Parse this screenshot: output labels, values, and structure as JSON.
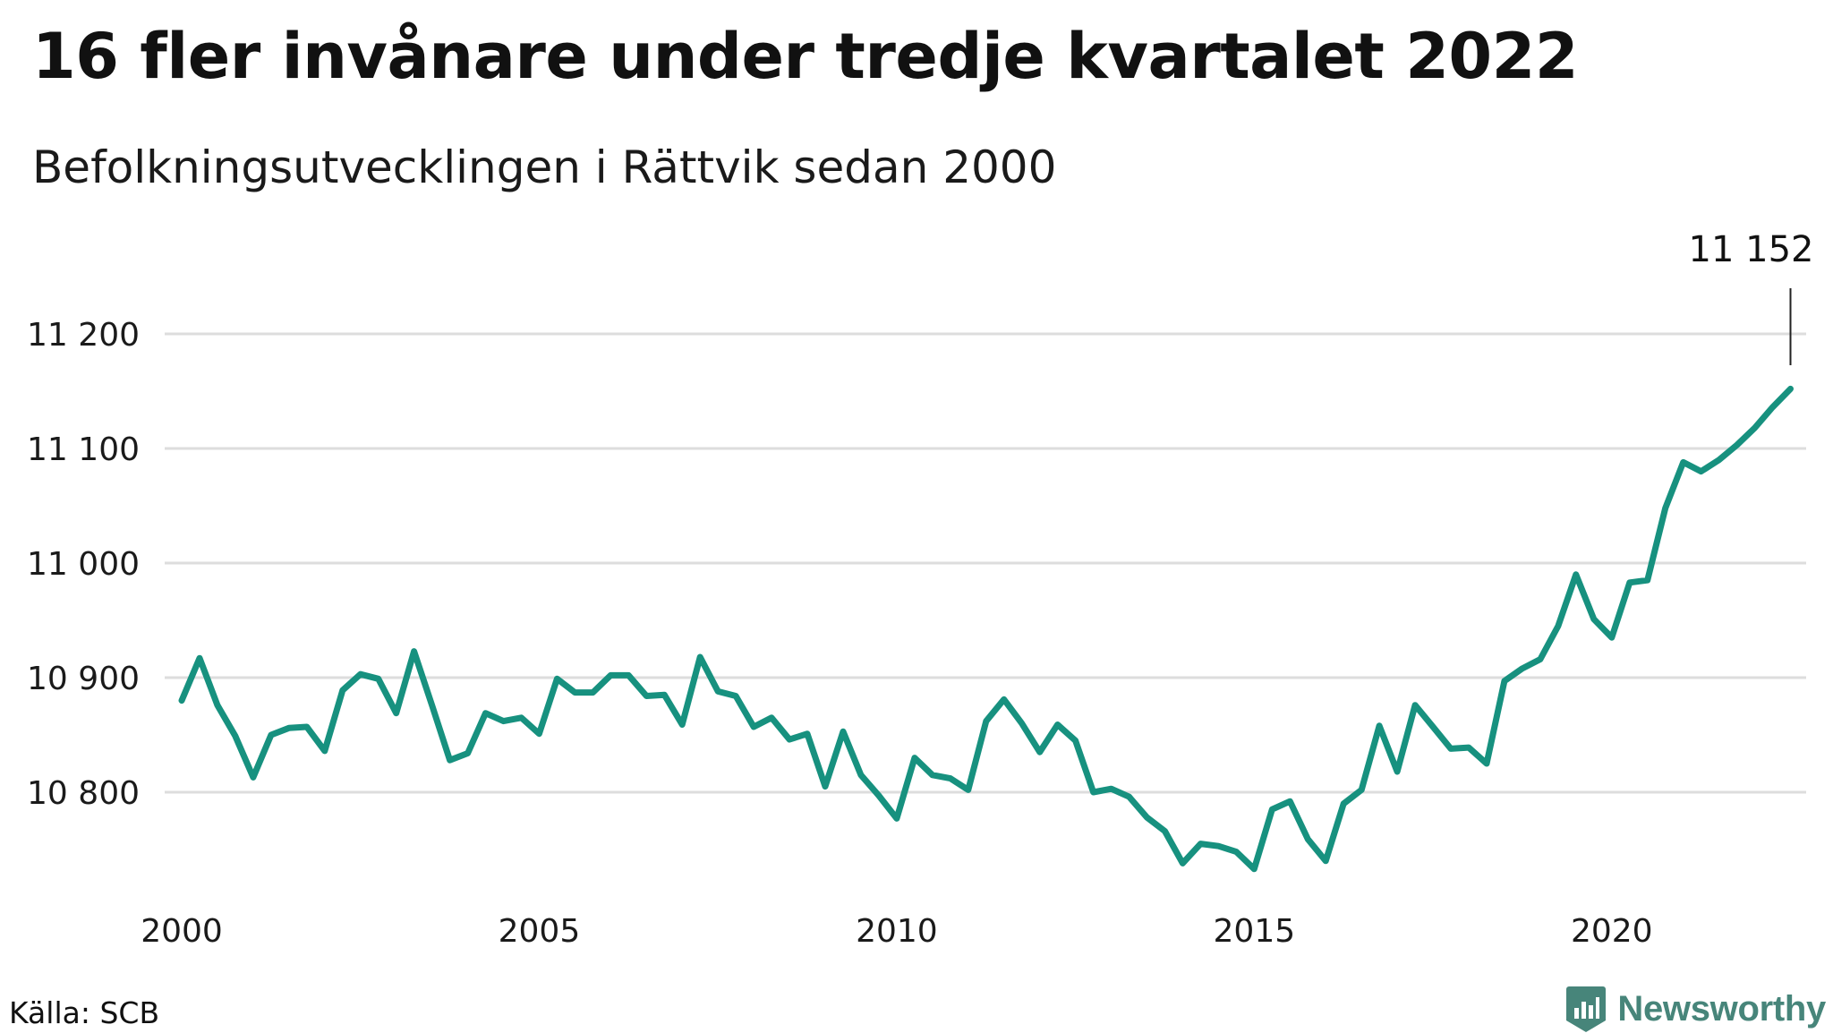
{
  "title": "16 fler invånare under tredje kvartalet 2022",
  "subtitle": "Befolkningsutvecklingen i Rättvik sedan 2000",
  "source": "Källa: SCB",
  "brand": {
    "name": "Newsworthy",
    "logo_icon": "bar-chart-badge-icon",
    "color": "#47857a"
  },
  "colors": {
    "line": "#17917f",
    "grid": "#dddddd",
    "annotation_line": "#222222"
  },
  "chart_data": {
    "type": "line",
    "title": "16 fler invånare under tredje kvartalet 2022",
    "subtitle": "Befolkningsutvecklingen i Rättvik sedan 2000",
    "x_tick_labels": [
      "2000",
      "2005",
      "2010",
      "2015",
      "2020"
    ],
    "x_ticks": [
      2000,
      2005,
      2010,
      2015,
      2020
    ],
    "y_tick_labels": [
      "10 800",
      "10 900",
      "11 000",
      "11 100",
      "11 200"
    ],
    "y_ticks": [
      10800,
      10900,
      11000,
      11100,
      11200
    ],
    "xlim": [
      2000,
      2023
    ],
    "ylim": [
      10720,
      11240
    ],
    "grid": true,
    "annotation": {
      "label": "11 152",
      "x": 2022.5,
      "y": 11152
    },
    "series": [
      {
        "x": [
          2000.0,
          2000.25,
          2000.5,
          2000.75,
          2001.0,
          2001.25,
          2001.5,
          2001.75,
          2002.0,
          2002.25,
          2002.5,
          2002.75,
          2003.0,
          2003.25,
          2003.5,
          2003.75,
          2004.0,
          2004.25,
          2004.5,
          2004.75,
          2005.0,
          2005.25,
          2005.5,
          2005.75,
          2006.0,
          2006.25,
          2006.5,
          2006.75,
          2007.0,
          2007.25,
          2007.5,
          2007.75,
          2008.0,
          2008.25,
          2008.5,
          2008.75,
          2009.0,
          2009.25,
          2009.5,
          2009.75,
          2010.0,
          2010.25,
          2010.5,
          2010.75,
          2011.0,
          2011.25,
          2011.5,
          2011.75,
          2012.0,
          2012.25,
          2012.5,
          2012.75,
          2013.0,
          2013.25,
          2013.5,
          2013.75,
          2014.0,
          2014.25,
          2014.5,
          2014.75,
          2015.0,
          2015.25,
          2015.5,
          2015.75,
          2016.0,
          2016.25,
          2016.5,
          2016.75,
          2017.0,
          2017.25,
          2017.5,
          2017.75,
          2018.0,
          2018.25,
          2018.5,
          2018.75,
          2019.0,
          2019.25,
          2019.5,
          2019.75,
          2020.0,
          2020.25,
          2020.5,
          2020.75,
          2021.0,
          2021.25,
          2021.5,
          2021.75,
          2022.0,
          2022.25,
          2022.5
        ],
        "y": [
          10880,
          10917,
          10876,
          10849,
          10813,
          10850,
          10856,
          10857,
          10836,
          10889,
          10903,
          10899,
          10869,
          10923,
          10876,
          10828,
          10834,
          10869,
          10862,
          10865,
          10851,
          10899,
          10887,
          10887,
          10902,
          10902,
          10884,
          10885,
          10859,
          10918,
          10888,
          10884,
          10857,
          10865,
          10846,
          10851,
          10805,
          10853,
          10815,
          10797,
          10777,
          10830,
          10815,
          10812,
          10802,
          10862,
          10881,
          10860,
          10835,
          10859,
          10845,
          10800,
          10803,
          10796,
          10778,
          10766,
          10738,
          10755,
          10753,
          10748,
          10733,
          10785,
          10792,
          10759,
          10740,
          10790,
          10802,
          10858,
          10818,
          10876,
          10857,
          10838,
          10839,
          10825,
          10897,
          10908,
          10916,
          10945,
          10990,
          10951,
          10935,
          10983,
          10985,
          11048,
          11088,
          11080,
          11090,
          11103,
          11118,
          11136,
          11152
        ]
      }
    ]
  }
}
